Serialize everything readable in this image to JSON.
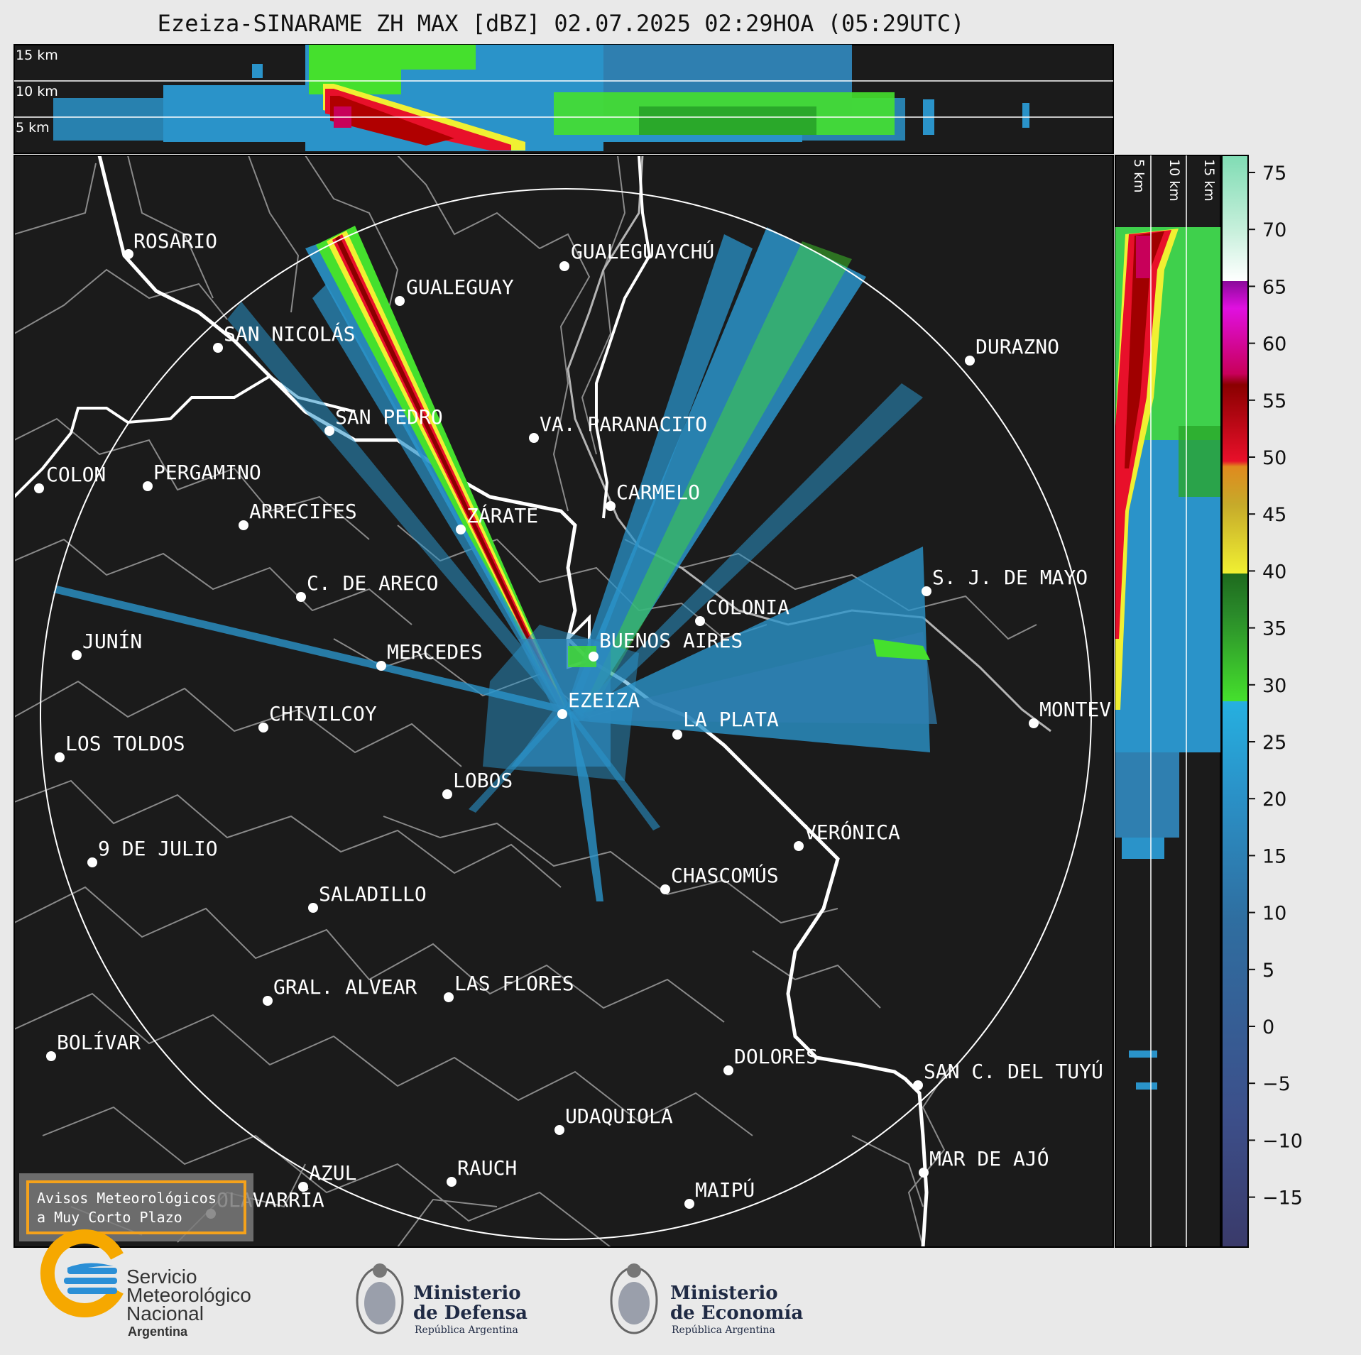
{
  "title": "Ezeiza-SINARAME ZH MAX [dBZ] 02.07.2025 02:29HOA (05:29UTC)",
  "top_panel": {
    "labels": [
      "15 km",
      "10 km",
      "5 km"
    ]
  },
  "side_panel": {
    "labels": [
      "5 km",
      "10 km",
      "15 km"
    ]
  },
  "colorbar": {
    "ticks": [
      "75",
      "70",
      "65",
      "60",
      "55",
      "50",
      "45",
      "40",
      "35",
      "30",
      "25",
      "20",
      "15",
      "10",
      "5",
      "0",
      "−5",
      "−10",
      "−15"
    ]
  },
  "cities": [
    {
      "name": "ROSARIO"
    },
    {
      "name": "GUALEGUAYCHÚ"
    },
    {
      "name": "GUALEGUAY"
    },
    {
      "name": "SAN NICOLÁS"
    },
    {
      "name": "DURAZNO"
    },
    {
      "name": "SAN PEDRO"
    },
    {
      "name": "VA. PARANACITO"
    },
    {
      "name": "COLON"
    },
    {
      "name": "PERGAMINO"
    },
    {
      "name": "CARMELO"
    },
    {
      "name": "ARRECIFES"
    },
    {
      "name": "ZÁRATE"
    },
    {
      "name": "S. J. DE MAYO"
    },
    {
      "name": "C. DE ARECO"
    },
    {
      "name": "COLONIA"
    },
    {
      "name": "JUNÍN"
    },
    {
      "name": "BUENOS AIRES"
    },
    {
      "name": "MERCEDES"
    },
    {
      "name": "EZEIZA"
    },
    {
      "name": "MONTEV"
    },
    {
      "name": "CHIVILCOY"
    },
    {
      "name": "LA PLATA"
    },
    {
      "name": "LOS TOLDOS"
    },
    {
      "name": "LOBOS"
    },
    {
      "name": "VERÓNICA"
    },
    {
      "name": "9 DE JULIO"
    },
    {
      "name": "CHASCOMÚS"
    },
    {
      "name": "SALADILLO"
    },
    {
      "name": "GRAL. ALVEAR"
    },
    {
      "name": "LAS FLORES"
    },
    {
      "name": "BOLÍVAR"
    },
    {
      "name": "DOLORES"
    },
    {
      "name": "SAN C. DEL TUYÚ"
    },
    {
      "name": "UDAQUIOLA"
    },
    {
      "name": "MAR DE AJÓ"
    },
    {
      "name": "AZUL"
    },
    {
      "name": "RAUCH"
    },
    {
      "name": "MAIPÚ"
    },
    {
      "name": "OLAVARRÍA"
    }
  ],
  "notice": {
    "line1": "Avisos Meteorológicos",
    "line2": "a Muy Corto Plazo"
  },
  "logos": {
    "smn": [
      "Servicio",
      "Meteorológico",
      "Nacional",
      "Argentina"
    ],
    "defensa": [
      "Ministerio",
      "de Defensa",
      "República Argentina"
    ],
    "economia": [
      "Ministerio",
      "de Economía",
      "República Argentina"
    ]
  },
  "colors": {
    "map_bg": "#1b1b1b",
    "coast": "#ffffff",
    "border": "#8a8a8a",
    "frame_bg": "#e9e9e9",
    "notice_border": "#f5a21b",
    "smn_blue": "#2b8fd6",
    "smn_orange": "#f6a800",
    "ministry_text": "#1f2a44"
  }
}
